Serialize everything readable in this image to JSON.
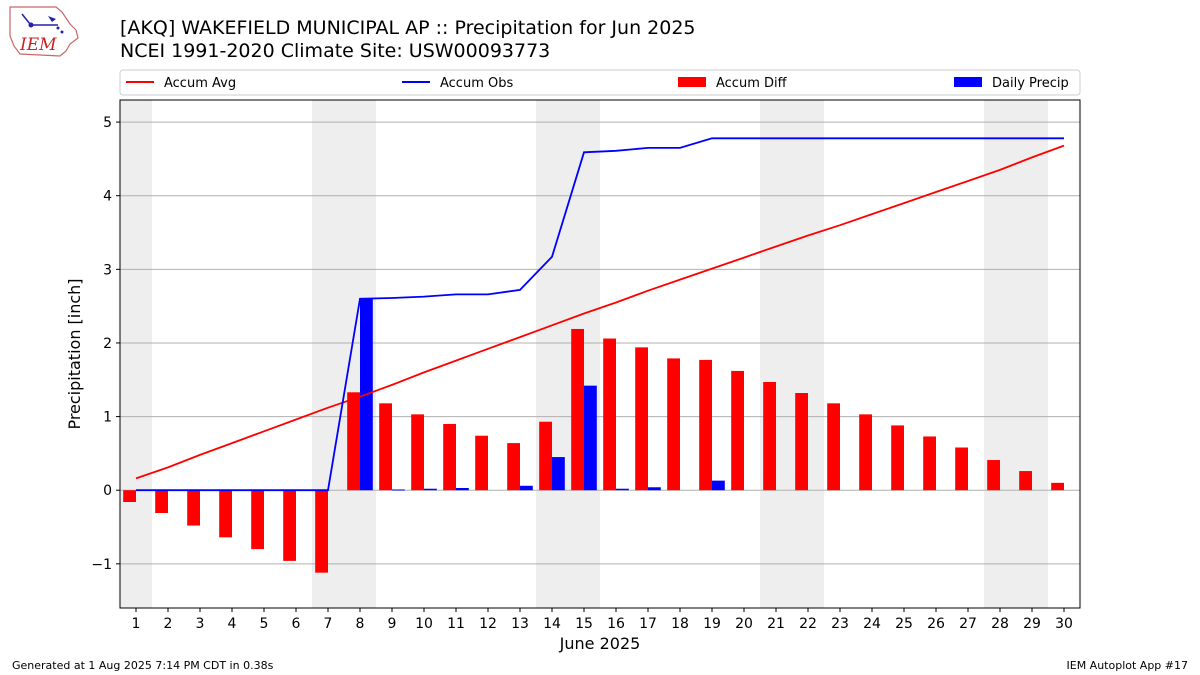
{
  "header": {
    "title_line1": "[AKQ] WAKEFIELD MUNICIPAL AP :: Precipitation for Jun 2025",
    "title_line2": "NCEI 1991-2020 Climate Site: USW00093773"
  },
  "logo": {
    "text": "IEM",
    "color": "#cc2222"
  },
  "footer": {
    "left": "Generated at 1 Aug 2025 7:14 PM CDT in 0.38s",
    "right": "IEM Autoplot App #17"
  },
  "chart_data": {
    "type": "bar",
    "xlabel": "June 2025",
    "ylabel": "Precipitation [inch]",
    "ylim": [
      -1.6,
      5.3
    ],
    "yticks": [
      -1,
      0,
      1,
      2,
      3,
      4,
      5
    ],
    "ytick_labels": [
      "−1",
      "0",
      "1",
      "2",
      "3",
      "4",
      "5"
    ],
    "grid": true,
    "legend_placement": "top, above plot",
    "shaded_weekend_days": [
      1,
      7,
      8,
      14,
      15,
      21,
      22,
      28,
      29
    ],
    "days": [
      1,
      2,
      3,
      4,
      5,
      6,
      7,
      8,
      9,
      10,
      11,
      12,
      13,
      14,
      15,
      16,
      17,
      18,
      19,
      20,
      21,
      22,
      23,
      24,
      25,
      26,
      27,
      28,
      29,
      30
    ],
    "series": [
      {
        "name": "Accum Avg",
        "kind": "line",
        "color": "#ff0000",
        "values": [
          0.16,
          0.31,
          0.48,
          0.64,
          0.8,
          0.96,
          1.12,
          1.27,
          1.43,
          1.6,
          1.76,
          1.92,
          2.08,
          2.24,
          2.4,
          2.55,
          2.71,
          2.86,
          3.01,
          3.16,
          3.31,
          3.46,
          3.6,
          3.75,
          3.9,
          4.05,
          4.2,
          4.35,
          4.52,
          4.68
        ]
      },
      {
        "name": "Accum Obs",
        "kind": "line",
        "color": "#0000ff",
        "values": [
          0,
          0,
          0,
          0,
          0,
          0,
          0,
          2.6,
          2.61,
          2.63,
          2.66,
          2.66,
          2.72,
          3.17,
          4.59,
          4.61,
          4.65,
          4.65,
          4.78,
          4.78,
          4.78,
          4.78,
          4.78,
          4.78,
          4.78,
          4.78,
          4.78,
          4.78,
          4.78,
          4.78
        ]
      },
      {
        "name": "Accum Diff",
        "kind": "bar",
        "color": "#ff0000",
        "values": [
          -0.16,
          -0.31,
          -0.48,
          -0.64,
          -0.8,
          -0.96,
          -1.12,
          1.33,
          1.18,
          1.03,
          0.9,
          0.74,
          0.64,
          0.93,
          2.19,
          2.06,
          1.94,
          1.79,
          1.77,
          1.62,
          1.47,
          1.32,
          1.18,
          1.03,
          0.88,
          0.73,
          0.58,
          0.41,
          0.26,
          0.1
        ]
      },
      {
        "name": "Daily Precip",
        "kind": "bar",
        "color": "#0000ff",
        "values": [
          0,
          0,
          0,
          0,
          0,
          0,
          0,
          2.6,
          0.01,
          0.02,
          0.03,
          0,
          0.06,
          0.45,
          1.42,
          0.02,
          0.04,
          0,
          0.13,
          0,
          0,
          0,
          0,
          0,
          0,
          0,
          0,
          0,
          0,
          0
        ]
      }
    ]
  }
}
